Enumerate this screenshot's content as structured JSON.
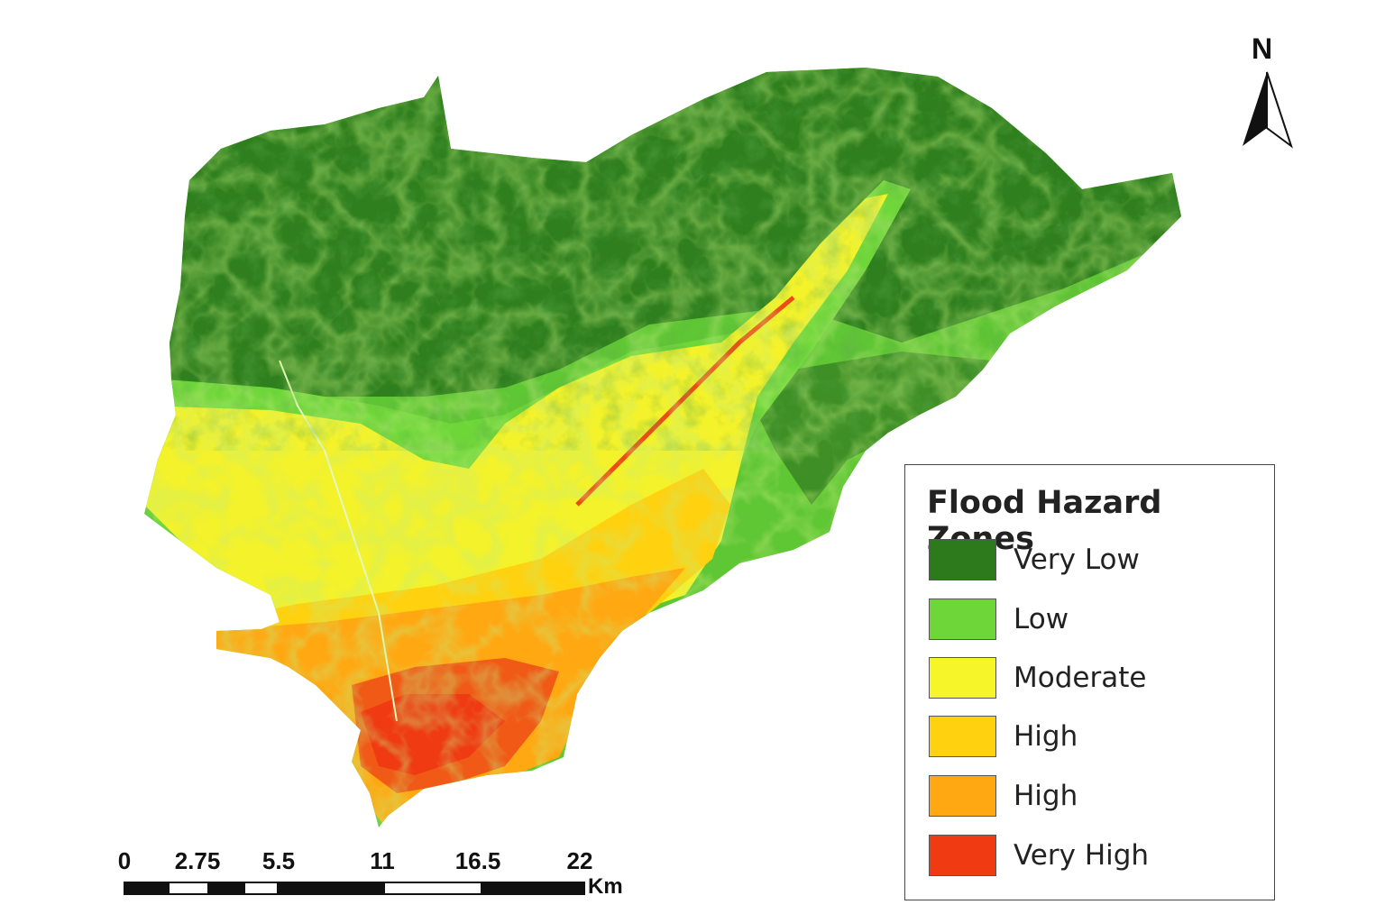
{
  "legend": {
    "title": "Flood Hazard Zones",
    "items": [
      {
        "label": "Very Low",
        "color": "#2d7a1c"
      },
      {
        "label": "Low",
        "color": "#6fd63a"
      },
      {
        "label": "Moderate",
        "color": "#f5f52a"
      },
      {
        "label": "High",
        "color": "#ffd10f"
      },
      {
        "label": "High",
        "color": "#ffa812"
      },
      {
        "label": "Very High",
        "color": "#f03a12"
      }
    ]
  },
  "north_arrow": {
    "label": "N"
  },
  "scale_bar": {
    "ticks": [
      "0",
      "2.75",
      "5.5",
      "11",
      "16.5",
      "22"
    ],
    "unit": "Km"
  }
}
